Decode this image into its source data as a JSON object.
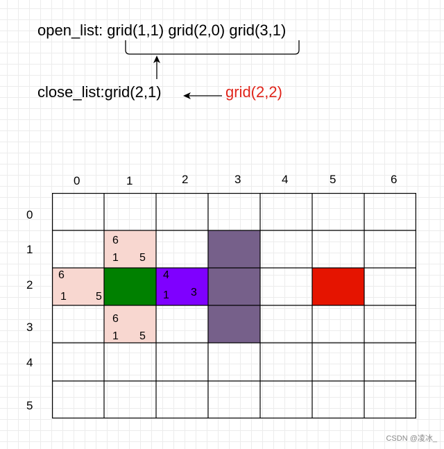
{
  "open_list_label": "open_list: grid(1,1) grid(2,0)   grid(3,1)",
  "close_list_label": "close_list:grid(2,1)",
  "current_label": "grid(2,2)",
  "columns": [
    "0",
    "1",
    "2",
    "3",
    "4",
    "5",
    "6"
  ],
  "rows": [
    "0",
    "1",
    "2",
    "3",
    "4",
    "5"
  ],
  "cells": {
    "c11": {
      "f": "6",
      "g": "1",
      "h": "5"
    },
    "c20": {
      "f": "6",
      "g": "1",
      "h": "5"
    },
    "c22": {
      "f": "4",
      "g": "1",
      "h": "3"
    },
    "c31": {
      "f": "6",
      "g": "1",
      "h": "5"
    }
  },
  "colors": {
    "candidate": "#f8d7d0",
    "start": "#008000",
    "current": "#7f00ff",
    "obstacle": "#76608a",
    "goal": "#e51400",
    "label_red": "#e0251b"
  },
  "watermark": "CSDN @凌冰_"
}
